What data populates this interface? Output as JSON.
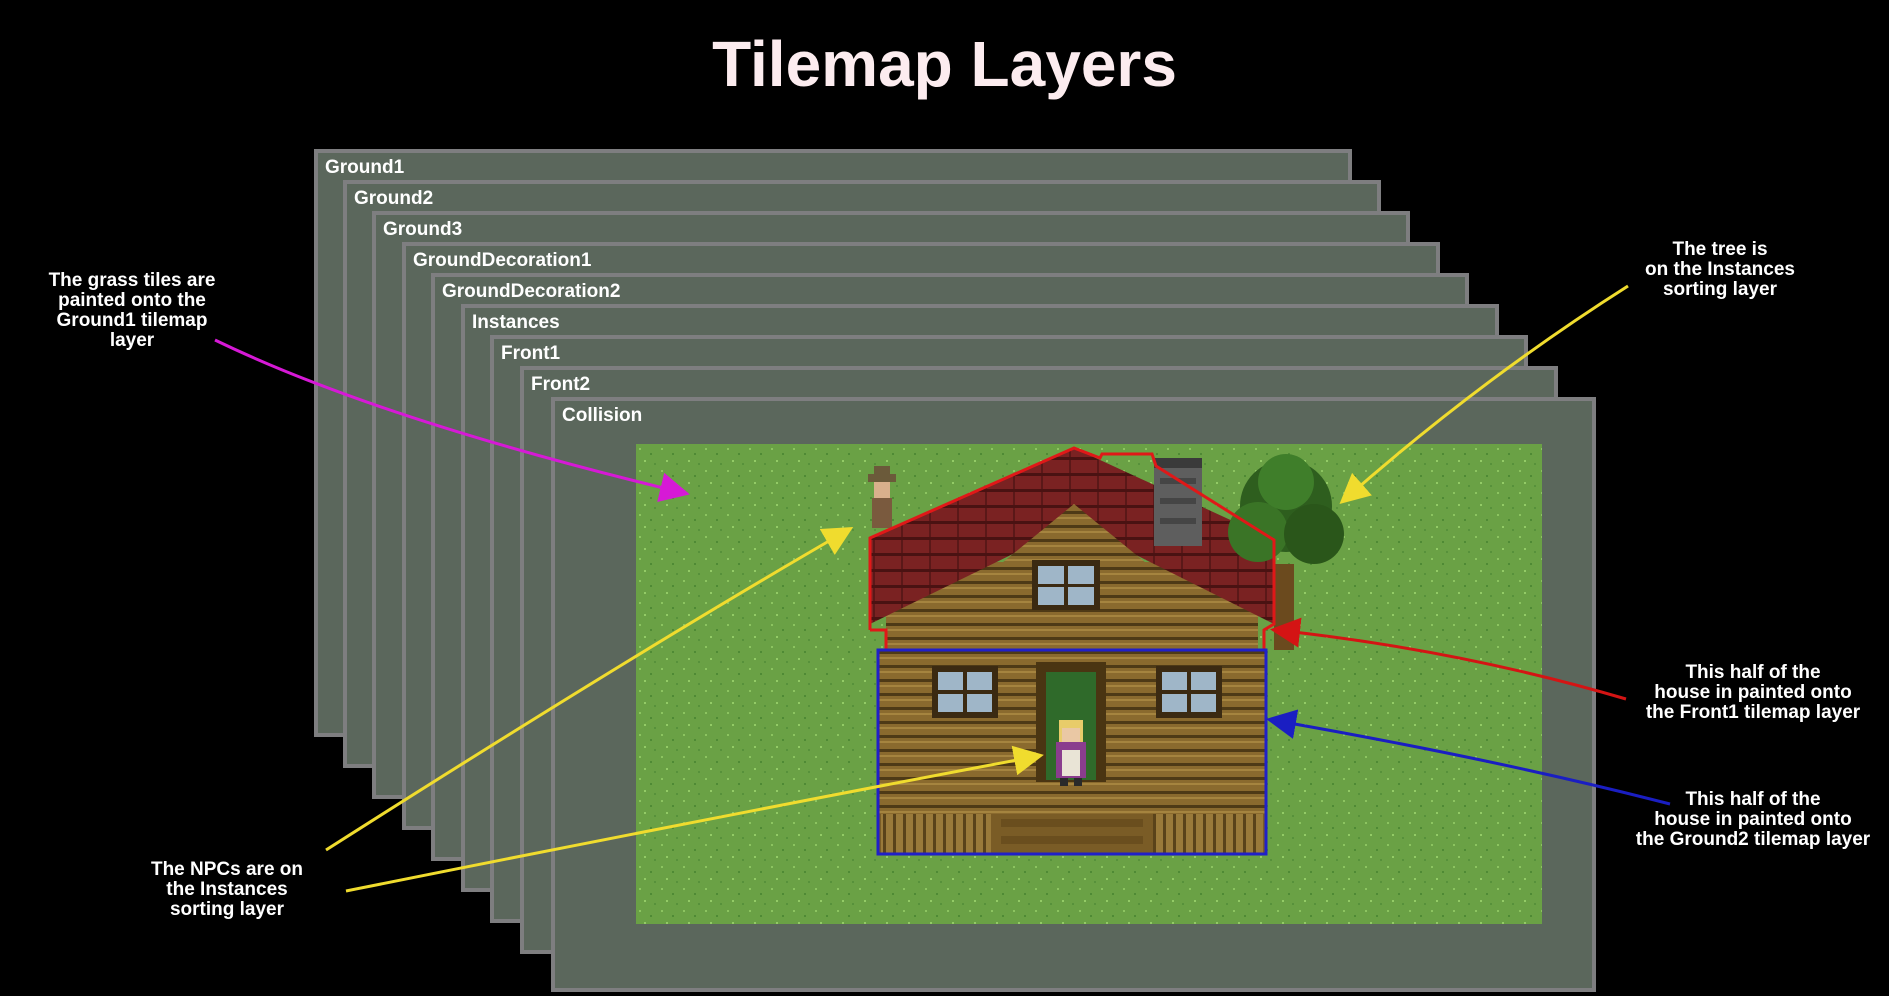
{
  "title": "Tilemap Layers",
  "layers": [
    {
      "name": "Ground1"
    },
    {
      "name": "Ground2"
    },
    {
      "name": "Ground3"
    },
    {
      "name": "GroundDecoration1"
    },
    {
      "name": "GroundDecoration2"
    },
    {
      "name": "Instances"
    },
    {
      "name": "Front1"
    },
    {
      "name": "Front2"
    },
    {
      "name": "Collision"
    }
  ],
  "annotations": {
    "grass": {
      "lines": [
        "The grass tiles are",
        "painted onto the",
        "Ground1 tilemap",
        "layer"
      ],
      "color": "#d619d6"
    },
    "tree": {
      "lines": [
        "The tree is",
        "on the Instances",
        "sorting layer"
      ],
      "color": "#f0dc2e"
    },
    "front1": {
      "lines": [
        "This half of the",
        "house in painted onto",
        "the Front1 tilemap layer"
      ],
      "color": "#d41414"
    },
    "ground2": {
      "lines": [
        "This half of the",
        "house in painted onto",
        "the Ground2 tilemap layer"
      ],
      "color": "#1a1ec2"
    },
    "npcs": {
      "lines": [
        "The NPCs are on",
        "the Instances",
        "sorting layer"
      ],
      "color": "#f0dc2e"
    }
  },
  "colors": {
    "background": "#000000",
    "layer_fill": "#5b675c",
    "layer_border": "#7e7e80",
    "grass": "#6aa145",
    "roof": "#7a2222",
    "wall": "#8a6a2e"
  }
}
